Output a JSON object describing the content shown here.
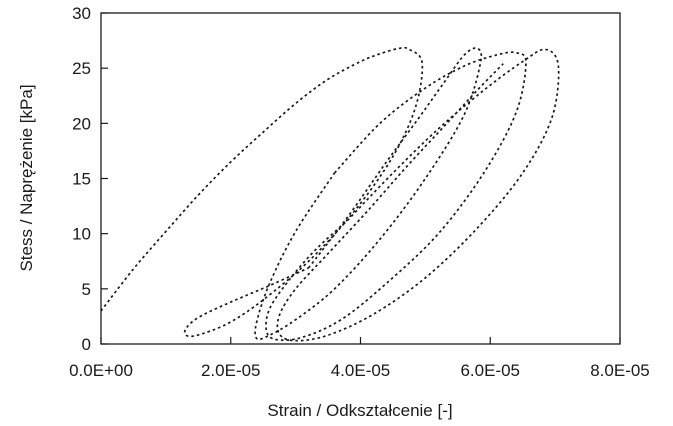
{
  "chart_data": {
    "type": "line",
    "title": "",
    "xlabel": "Strain / Odkształcenie [-]",
    "ylabel": "Stess / Naprężenie [kPa]",
    "xlim": [
      0.0,
      8e-05
    ],
    "ylim": [
      0,
      30
    ],
    "xticks": [
      0.0,
      2e-05,
      4e-05,
      6e-05,
      8e-05
    ],
    "xtick_labels": [
      "0.0E+00",
      "2.0E-05",
      "4.0E-05",
      "6.0E-05",
      "8.0E-05"
    ],
    "yticks": [
      0,
      5,
      10,
      15,
      20,
      25,
      30
    ],
    "ytick_labels": [
      "0",
      "5",
      "10",
      "15",
      "20",
      "25",
      "30"
    ],
    "grid": false,
    "legend": "none",
    "line_style": "dotted",
    "series": [
      {
        "x": [
          0.0,
          5e-06,
          1e-05,
          1.5e-05,
          2e-05,
          2.5e-05,
          3e-05,
          3.5e-05,
          4e-05,
          4.3e-05,
          4.6e-05,
          4.75e-05,
          4.95e-05,
          4.85e-05,
          4.5e-05,
          3.9e-05,
          3.2e-05,
          2.5e-05,
          2e-05,
          1.6e-05,
          1.35e-05,
          1.3e-05,
          1.5e-05,
          2e-05,
          2.6e-05,
          3.2e-05
        ],
        "y": [
          3.0,
          6.8,
          10.2,
          13.5,
          16.5,
          19.2,
          21.8,
          24.0,
          25.6,
          26.3,
          26.8,
          26.7,
          25.5,
          21.5,
          17.0,
          12.0,
          7.5,
          4.0,
          2.0,
          1.0,
          0.7,
          1.3,
          2.4,
          3.8,
          5.3,
          6.9
        ]
      },
      {
        "x": [
          3.2e-05,
          3.8e-05,
          4.4e-05,
          4.9e-05,
          5.3e-05,
          5.6e-05,
          5.8e-05,
          5.85e-05,
          5.6e-05,
          5e-05,
          4.3e-05,
          3.6e-05,
          3e-05,
          2.6e-05,
          2.4e-05,
          2.4e-05,
          2.6e-05,
          3e-05,
          3.6e-05
        ],
        "y": [
          6.9,
          11.5,
          16.5,
          20.5,
          23.8,
          26.2,
          26.8,
          25.5,
          20.8,
          15.0,
          9.5,
          5.0,
          2.2,
          0.8,
          0.5,
          2.0,
          5.5,
          10.2,
          15.5
        ]
      },
      {
        "x": [
          3.6e-05,
          4.3e-05,
          5e-05,
          5.6e-05,
          6.1e-05,
          6.4e-05,
          6.55e-05,
          6.4e-05,
          5.9e-05,
          5.2e-05,
          4.4e-05,
          3.7e-05,
          3.1e-05,
          2.7e-05,
          2.55e-05,
          2.6e-05,
          2.9e-05,
          3.3e-05,
          3.8e-05
        ],
        "y": [
          15.5,
          20.0,
          23.2,
          25.2,
          26.2,
          26.4,
          25.5,
          21.0,
          15.5,
          10.0,
          5.5,
          2.2,
          0.6,
          0.4,
          1.2,
          3.2,
          5.8,
          8.5,
          11.2
        ]
      },
      {
        "x": [
          3.8e-05,
          4.5e-05,
          5.2e-05,
          5.9e-05,
          6.5e-05,
          6.85e-05,
          7.05e-05,
          6.95e-05,
          6.5e-05,
          5.8e-05,
          5e-05,
          4.2e-05,
          3.5e-05,
          3e-05,
          2.75e-05,
          2.75e-05,
          3e-05,
          3.5e-05,
          4.1e-05,
          4.7e-05,
          5.3e-05,
          5.8e-05,
          6.2e-05
        ],
        "y": [
          11.2,
          15.5,
          19.5,
          23.0,
          25.6,
          26.7,
          25.2,
          20.5,
          15.5,
          10.5,
          6.0,
          2.7,
          0.8,
          0.3,
          0.9,
          2.6,
          5.0,
          8.2,
          12.0,
          16.0,
          19.8,
          23.0,
          25.4
        ]
      }
    ]
  }
}
